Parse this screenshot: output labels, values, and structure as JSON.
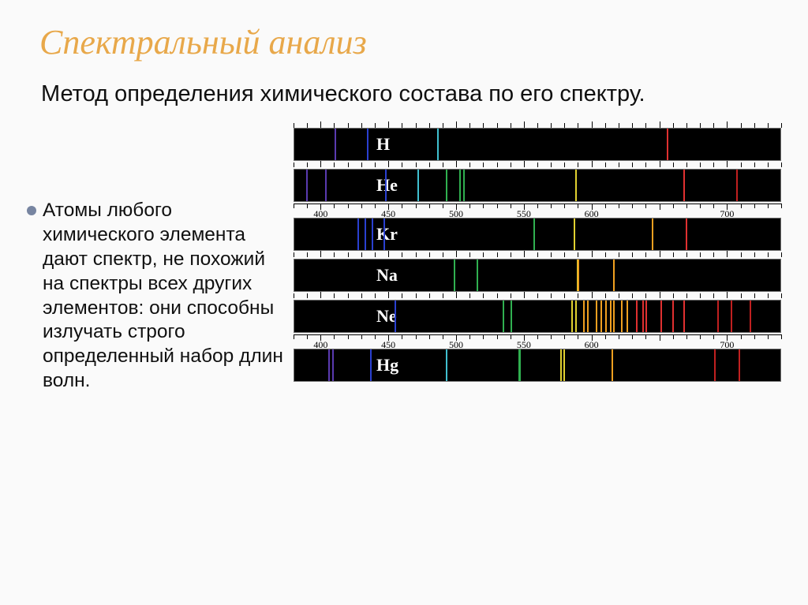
{
  "title": "Спектральный анализ",
  "subtitle": "Метод определения химического состава по его спектру.",
  "bullet_text": "Атомы любого химического элемента дают спектр, не похожий на спектры всех других элементов: они способны излучать строго определенный набор длин волн.",
  "axis": {
    "min_nm": 380,
    "max_nm": 740,
    "labels": [
      400,
      450,
      500,
      550,
      600,
      700
    ],
    "minor_step": 10,
    "major_step": 50
  },
  "colors": {
    "violet": "#5a3ab0",
    "blue": "#2a40d0",
    "cyan": "#40c0d0",
    "green": "#30b050",
    "green2": "#60d050",
    "yellow": "#e0d030",
    "orange": "#f0a020",
    "red": "#e03030",
    "red2": "#c02020"
  },
  "spectra": [
    {
      "element": "H",
      "lines": [
        {
          "nm": 410,
          "c": "violet"
        },
        {
          "nm": 434,
          "c": "blue"
        },
        {
          "nm": 486,
          "c": "cyan"
        },
        {
          "nm": 656,
          "c": "red"
        }
      ]
    },
    {
      "element": "He",
      "lines": [
        {
          "nm": 389,
          "c": "violet"
        },
        {
          "nm": 403,
          "c": "violet"
        },
        {
          "nm": 447,
          "c": "blue"
        },
        {
          "nm": 471,
          "c": "cyan"
        },
        {
          "nm": 492,
          "c": "green"
        },
        {
          "nm": 502,
          "c": "green"
        },
        {
          "nm": 505,
          "c": "green"
        },
        {
          "nm": 588,
          "c": "yellow"
        },
        {
          "nm": 668,
          "c": "red"
        },
        {
          "nm": 707,
          "c": "red2"
        }
      ]
    },
    {
      "element": "Kr",
      "lines": [
        {
          "nm": 427,
          "c": "blue"
        },
        {
          "nm": 432,
          "c": "blue"
        },
        {
          "nm": 437,
          "c": "blue"
        },
        {
          "nm": 446,
          "c": "blue"
        },
        {
          "nm": 557,
          "c": "green"
        },
        {
          "nm": 587,
          "c": "yellow"
        },
        {
          "nm": 645,
          "c": "orange"
        },
        {
          "nm": 670,
          "c": "red"
        }
      ],
      "edges": {
        "left_fill": 395
      }
    },
    {
      "element": "Na",
      "lines": [
        {
          "nm": 498,
          "c": "green"
        },
        {
          "nm": 515,
          "c": "green"
        },
        {
          "nm": 589,
          "c": "yellow",
          "w": 3
        },
        {
          "nm": 590,
          "c": "orange"
        },
        {
          "nm": 616,
          "c": "orange"
        }
      ]
    },
    {
      "element": "Ne",
      "lines": [
        {
          "nm": 454,
          "c": "blue"
        },
        {
          "nm": 534,
          "c": "green"
        },
        {
          "nm": 540,
          "c": "green"
        },
        {
          "nm": 585,
          "c": "yellow"
        },
        {
          "nm": 588,
          "c": "yellow"
        },
        {
          "nm": 594,
          "c": "orange"
        },
        {
          "nm": 597,
          "c": "orange"
        },
        {
          "nm": 603,
          "c": "orange"
        },
        {
          "nm": 607,
          "c": "orange"
        },
        {
          "nm": 610,
          "c": "orange"
        },
        {
          "nm": 614,
          "c": "orange"
        },
        {
          "nm": 616,
          "c": "orange"
        },
        {
          "nm": 622,
          "c": "orange"
        },
        {
          "nm": 626,
          "c": "orange"
        },
        {
          "nm": 633,
          "c": "red"
        },
        {
          "nm": 638,
          "c": "red"
        },
        {
          "nm": 640,
          "c": "red"
        },
        {
          "nm": 651,
          "c": "red"
        },
        {
          "nm": 660,
          "c": "red"
        },
        {
          "nm": 668,
          "c": "red"
        },
        {
          "nm": 693,
          "c": "red2"
        },
        {
          "nm": 703,
          "c": "red2"
        },
        {
          "nm": 717,
          "c": "red2"
        }
      ]
    },
    {
      "element": "Hg",
      "lines": [
        {
          "nm": 405,
          "c": "violet"
        },
        {
          "nm": 408,
          "c": "violet"
        },
        {
          "nm": 436,
          "c": "blue"
        },
        {
          "nm": 492,
          "c": "cyan"
        },
        {
          "nm": 546,
          "c": "green",
          "w": 3
        },
        {
          "nm": 577,
          "c": "yellow"
        },
        {
          "nm": 579,
          "c": "yellow"
        },
        {
          "nm": 615,
          "c": "orange"
        },
        {
          "nm": 691,
          "c": "red2"
        },
        {
          "nm": 709,
          "c": "red2"
        }
      ]
    }
  ]
}
